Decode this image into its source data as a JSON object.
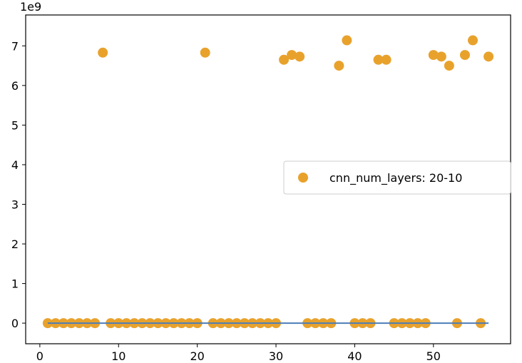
{
  "chart_data": {
    "type": "scatter",
    "title": "",
    "xlabel": "",
    "ylabel": "",
    "y_offset_label": "1e9",
    "xlim": [
      -1.8,
      59.8
    ],
    "ylim": [
      -0.52,
      7.78
    ],
    "x_ticks": [
      0,
      10,
      20,
      30,
      40,
      50
    ],
    "x_tick_labels": [
      "0",
      "10",
      "20",
      "30",
      "40",
      "50"
    ],
    "y_ticks": [
      0,
      1,
      2,
      3,
      4,
      5,
      6,
      7
    ],
    "y_tick_labels": [
      "0",
      "1",
      "2",
      "3",
      "4",
      "5",
      "6",
      "7"
    ],
    "grid": false,
    "legend": {
      "placement": "center-right",
      "entries": [
        "cnn_num_layers: 20-10"
      ]
    },
    "series": [
      {
        "name": "cnn_num_layers: 20-10",
        "kind": "scatter",
        "color": "#E8A22C",
        "x": [
          1,
          2,
          3,
          4,
          5,
          6,
          7,
          8,
          9,
          10,
          11,
          12,
          13,
          14,
          15,
          16,
          17,
          18,
          19,
          20,
          21,
          22,
          23,
          24,
          25,
          26,
          27,
          28,
          29,
          30,
          31,
          32,
          33,
          34,
          35,
          36,
          37,
          38,
          39,
          40,
          41,
          42,
          43,
          44,
          45,
          46,
          47,
          48,
          49,
          50,
          51,
          52,
          53,
          54,
          55,
          56,
          57
        ],
        "y": [
          0,
          0,
          0,
          0,
          0,
          0,
          0,
          6.83,
          0,
          0,
          0,
          0,
          0,
          0,
          0,
          0,
          0,
          0,
          0,
          0,
          6.83,
          0,
          0,
          0,
          0,
          0,
          0,
          0,
          0,
          0,
          6.65,
          6.77,
          6.73,
          0,
          0,
          0,
          0,
          6.5,
          7.14,
          0,
          0,
          0,
          6.65,
          6.65,
          0,
          0,
          0,
          0,
          0,
          6.77,
          6.73,
          6.5,
          0,
          6.77,
          7.14,
          0,
          6.73
        ]
      },
      {
        "kind": "line",
        "color": "#4C7DB8",
        "x": [
          1,
          57
        ],
        "y": [
          0,
          0
        ]
      }
    ]
  }
}
